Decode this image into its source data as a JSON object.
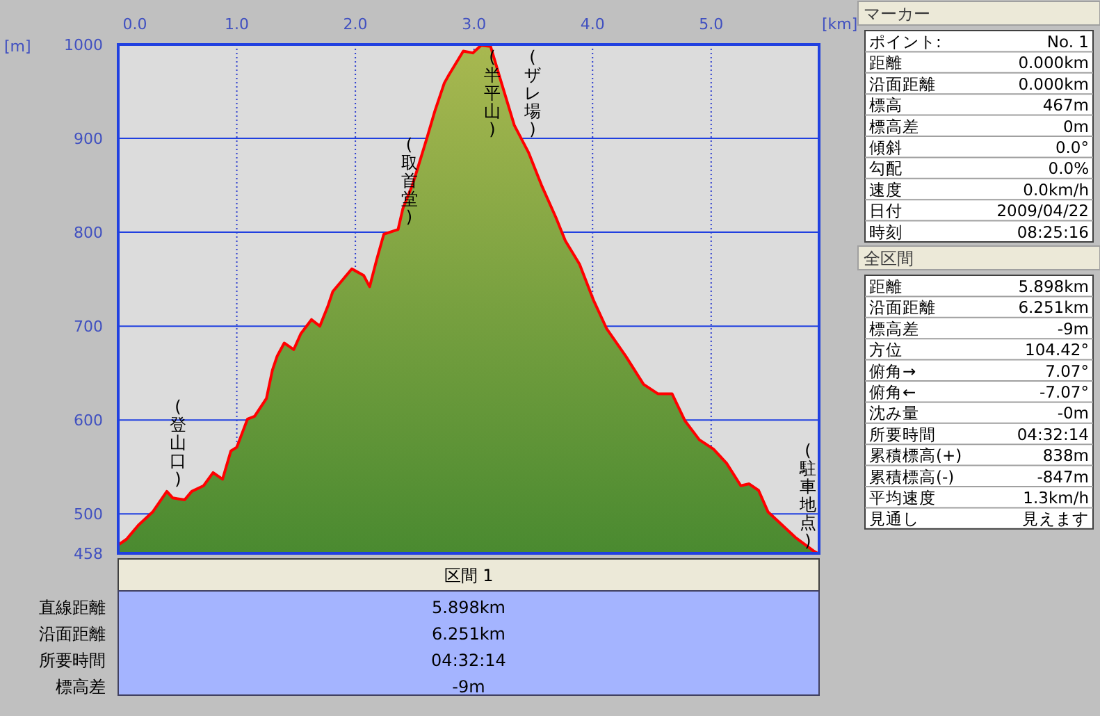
{
  "chart_data": [
    {
      "type": "area",
      "xlabel": "[km]",
      "ylabel": "[m]",
      "xlim": [
        0,
        5.91
      ],
      "ylim": [
        458,
        1000
      ],
      "xticks": [
        {
          "value": 0,
          "label": "0.0"
        },
        {
          "value": 1,
          "label": "1.0"
        },
        {
          "value": 2,
          "label": "2.0"
        },
        {
          "value": 3,
          "label": "3.0"
        },
        {
          "value": 4,
          "label": "4.0"
        },
        {
          "value": 5,
          "label": "5.0"
        }
      ],
      "yticks": [
        458,
        500,
        600,
        700,
        800,
        900,
        1000
      ],
      "grid": true,
      "x": [
        0,
        0.07,
        0.17,
        0.29,
        0.41,
        0.46,
        0.56,
        0.62,
        0.72,
        0.8,
        0.88,
        0.95,
        1.0,
        1.09,
        1.15,
        1.25,
        1.3,
        1.34,
        1.4,
        1.48,
        1.54,
        1.63,
        1.7,
        1.77,
        1.81,
        1.89,
        1.97,
        2.07,
        2.12,
        2.18,
        2.24,
        2.36,
        2.4,
        2.48,
        2.52,
        2.6,
        2.67,
        2.75,
        2.79,
        2.91,
        2.99,
        3.06,
        3.14,
        3.22,
        3.34,
        3.46,
        3.57,
        3.69,
        3.77,
        3.89,
        4.01,
        4.12,
        4.28,
        4.43,
        4.55,
        4.67,
        4.78,
        4.9,
        5.02,
        5.13,
        5.25,
        5.32,
        5.4,
        5.48,
        5.6,
        5.71,
        5.87,
        5.898
      ],
      "series": [
        {
          "color": "#ff0000",
          "values": [
            467,
            473,
            488,
            502,
            524,
            517,
            515,
            524,
            530,
            544,
            537,
            567,
            571,
            601,
            604,
            623,
            653,
            668,
            682,
            675,
            692,
            707,
            700,
            722,
            737,
            749,
            761,
            754,
            742,
            771,
            798,
            803,
            825,
            850,
            866,
            899,
            929,
            959,
            968,
            993,
            991,
            999,
            998,
            964,
            914,
            885,
            850,
            816,
            791,
            766,
            727,
            697,
            668,
            638,
            628,
            628,
            599,
            579,
            569,
            554,
            530,
            532,
            525,
            502,
            488,
            475,
            460,
            458
          ]
        }
      ],
      "annotations": [
        {
          "text": "(登山口)",
          "x": 0.41,
          "y": 524
        },
        {
          "text": "(取首堂)",
          "x": 2.36,
          "y": 803
        },
        {
          "text": "(半平山)",
          "x": 3.06,
          "y": 999
        },
        {
          "text": "(ザレ場)",
          "x": 3.4,
          "y": 900
        },
        {
          "text": "(駐車地点)",
          "x": 5.898,
          "y": 458
        }
      ]
    },
    {
      "type": "other",
      "title": "マーカー",
      "annotations": [
        "ポイント:",
        "No. 1",
        "距離",
        "0.000km",
        "沿面距離",
        "0.000km",
        "標高",
        "467m",
        "標高差",
        "0m",
        "傾斜",
        "0.0°",
        "勾配",
        "0.0%",
        "速度",
        "0.0km/h",
        "日付",
        "2009/04/22",
        "時刻",
        "08:25:16"
      ]
    },
    {
      "type": "other",
      "title": "全区間",
      "annotations": [
        "距離",
        "5.898km",
        "沿面距離",
        "6.251km",
        "標高差",
        "-9m",
        "方位",
        "104.42°",
        "俯角→",
        "7.07°",
        "俯角←",
        "-7.07°",
        "沈み量",
        "-0m",
        "所要時間",
        "04:32:14",
        "累積標高(+)",
        "838m",
        "累積標高(-)",
        "-847m",
        "平均速度",
        "1.3km/h",
        "見通し",
        "見えます"
      ]
    },
    {
      "type": "other",
      "title": "区間 1",
      "annotations": [
        "直線距離",
        "5.898km",
        "沿面距離",
        "6.251km",
        "所要時間",
        "04:32:14",
        "標高差",
        "-9m"
      ]
    }
  ]
}
